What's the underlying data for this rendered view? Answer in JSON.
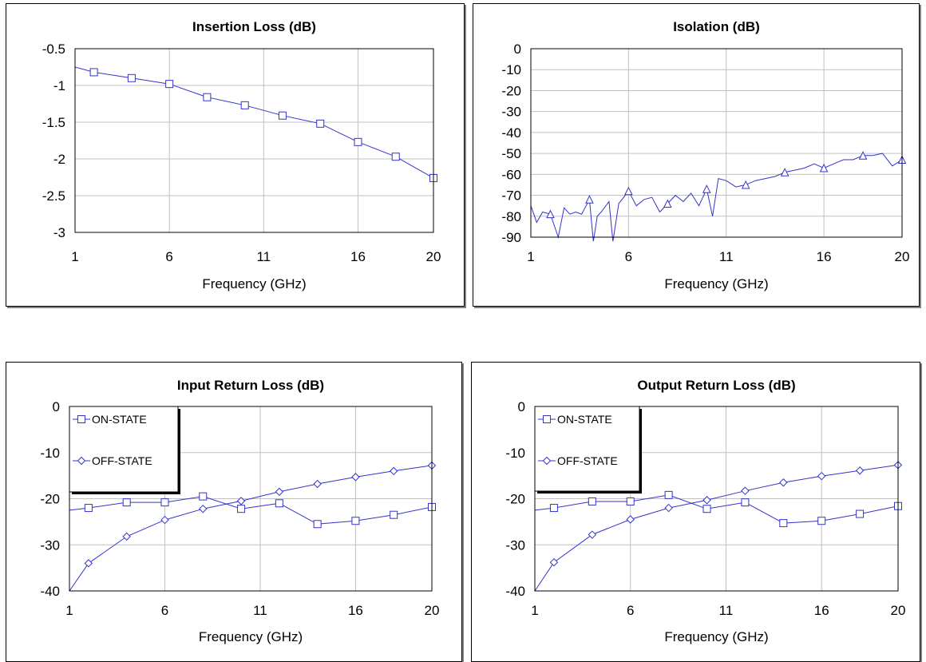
{
  "chart_data": [
    {
      "type": "line",
      "title": "Insertion Loss (dB)",
      "xlabel": "Frequency (GHz)",
      "ylabel": "",
      "xlim": [
        1,
        20
      ],
      "ylim": [
        -3,
        -0.5
      ],
      "xticks": [
        "1",
        "6",
        "11",
        "16",
        "20"
      ],
      "yticks": [
        "-0.5",
        "-1",
        "-1.5",
        "-2",
        "-2.5",
        "-3"
      ],
      "grid": true,
      "legend": null,
      "series": [
        {
          "marker": "square",
          "color": "#3333cc",
          "x": [
            1,
            2,
            4,
            6,
            8,
            10,
            12,
            14,
            16,
            18,
            20
          ],
          "y": [
            -0.75,
            -0.82,
            -0.9,
            -0.98,
            -1.16,
            -1.27,
            -1.41,
            -1.52,
            -1.77,
            -1.97,
            -2.26
          ],
          "markers_x": [
            2,
            4,
            6,
            8,
            10,
            12,
            14,
            16,
            18,
            20
          ]
        }
      ]
    },
    {
      "type": "line",
      "title": "Isolation (dB)",
      "xlabel": "Frequency (GHz)",
      "ylabel": "",
      "xlim": [
        1,
        20
      ],
      "ylim": [
        -90,
        0
      ],
      "xticks": [
        "1",
        "6",
        "11",
        "16",
        "20"
      ],
      "yticks": [
        "0",
        "-10",
        "-20",
        "-30",
        "-40",
        "-50",
        "-60",
        "-70",
        "-80",
        "-90"
      ],
      "grid": true,
      "legend": null,
      "series": [
        {
          "marker": "triangle",
          "color": "#3333cc",
          "x": [
            1,
            1.3,
            1.6,
            2,
            2.4,
            2.7,
            3,
            3.3,
            3.6,
            4,
            4.2,
            4.4,
            4.6,
            5,
            5.2,
            5.5,
            6,
            6.4,
            6.8,
            7.2,
            7.6,
            8,
            8.4,
            8.8,
            9.2,
            9.6,
            10,
            10.3,
            10.6,
            11,
            11.5,
            12,
            12.5,
            13,
            13.5,
            14,
            14.5,
            15,
            15.5,
            16,
            16.5,
            17,
            17.5,
            18,
            18.5,
            19,
            19.5,
            20
          ],
          "y": [
            -75,
            -83,
            -78,
            -79,
            -90,
            -76,
            -79,
            -78,
            -79,
            -72,
            -92,
            -80,
            -78,
            -73,
            -92,
            -74,
            -68,
            -75,
            -72,
            -71,
            -78,
            -74,
            -70,
            -73,
            -69,
            -75,
            -67,
            -80,
            -62,
            -63,
            -66,
            -65,
            -63,
            -62,
            -61,
            -59,
            -58,
            -57,
            -55,
            -57,
            -55,
            -53,
            -53,
            -51,
            -51,
            -50,
            -56,
            -53
          ],
          "markers_x": [
            2,
            4,
            6,
            8,
            10,
            12,
            14,
            16,
            18,
            20
          ]
        }
      ]
    },
    {
      "type": "line",
      "title": "Input Return Loss (dB)",
      "xlabel": "Frequency (GHz)",
      "ylabel": "",
      "xlim": [
        1,
        20
      ],
      "ylim": [
        -40,
        0
      ],
      "xticks": [
        "1",
        "6",
        "11",
        "16",
        "20"
      ],
      "yticks": [
        "0",
        "-10",
        "-20",
        "-30",
        "-40"
      ],
      "grid": true,
      "legend": "top-left",
      "series": [
        {
          "name": "ON-STATE",
          "marker": "square",
          "color": "#3333cc",
          "x": [
            1,
            2,
            4,
            6,
            8,
            10,
            12,
            14,
            16,
            18,
            20
          ],
          "y": [
            -22.5,
            -22,
            -20.8,
            -20.8,
            -19.5,
            -22.2,
            -21,
            -25.5,
            -24.8,
            -23.5,
            -21.8
          ]
        },
        {
          "name": "OFF-STATE",
          "marker": "diamond",
          "color": "#3333cc",
          "x": [
            1,
            2,
            4,
            6,
            8,
            10,
            12,
            14,
            16,
            18,
            20
          ],
          "y": [
            -40,
            -34,
            -28.2,
            -24.6,
            -22.2,
            -20.5,
            -18.5,
            -16.8,
            -15.3,
            -14,
            -12.8
          ]
        }
      ]
    },
    {
      "type": "line",
      "title": "Output Return Loss (dB)",
      "xlabel": "Frequency (GHz)",
      "ylabel": "",
      "xlim": [
        1,
        20
      ],
      "ylim": [
        -40,
        0
      ],
      "xticks": [
        "1",
        "6",
        "11",
        "16",
        "20"
      ],
      "yticks": [
        "0",
        "-10",
        "-20",
        "-30",
        "-40"
      ],
      "grid": true,
      "legend": "top-left",
      "series": [
        {
          "name": "ON-STATE",
          "marker": "square",
          "color": "#3333cc",
          "x": [
            1,
            2,
            4,
            6,
            8,
            10,
            12,
            14,
            16,
            18,
            20
          ],
          "y": [
            -22.5,
            -22,
            -20.6,
            -20.6,
            -19.2,
            -22.2,
            -20.8,
            -25.3,
            -24.8,
            -23.3,
            -21.6
          ]
        },
        {
          "name": "OFF-STATE",
          "marker": "diamond",
          "color": "#3333cc",
          "x": [
            1,
            2,
            4,
            6,
            8,
            10,
            12,
            14,
            16,
            18,
            20
          ],
          "y": [
            -40,
            -33.8,
            -27.8,
            -24.5,
            -22,
            -20.3,
            -18.3,
            -16.5,
            -15.1,
            -13.9,
            -12.7
          ]
        }
      ]
    }
  ]
}
